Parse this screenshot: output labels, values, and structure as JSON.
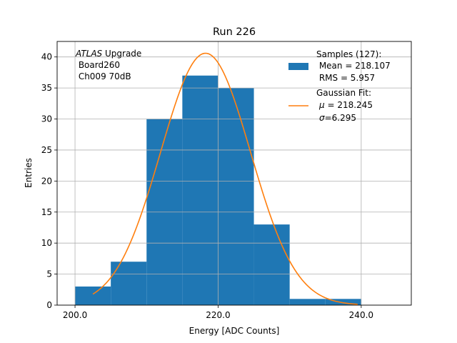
{
  "chart_data": {
    "type": "bar",
    "title": "Run 226",
    "xlabel": "Energy [ADC Counts]",
    "ylabel": "Entries",
    "xlim": [
      197.5,
      247.0
    ],
    "ylim": [
      0,
      42.5
    ],
    "grid": true,
    "x_ticks": [
      200,
      220,
      240
    ],
    "x_tick_labels": [
      "200.0",
      "220.0",
      "240.0"
    ],
    "y_ticks": [
      0,
      5,
      10,
      15,
      20,
      25,
      30,
      35,
      40
    ],
    "y_tick_labels": [
      "0",
      "5",
      "10",
      "15",
      "20",
      "25",
      "30",
      "35",
      "40"
    ],
    "histogram": {
      "bin_edges": [
        200,
        205,
        210,
        215,
        220,
        225,
        230,
        235,
        240
      ],
      "counts": [
        3,
        7,
        30,
        37,
        35,
        13,
        1,
        1
      ],
      "color": "#1f77b4"
    },
    "fit": {
      "type": "gaussian",
      "amplitude": 40.6,
      "mu": 218.245,
      "sigma": 6.295,
      "x_range": [
        202.5,
        239.5
      ],
      "color": "#ff7f0e"
    },
    "annotation": {
      "line1_italic": "ATLAS",
      "line1_rest": " Upgrade",
      "line2": " Board260",
      "line3": " Ch009 70dB"
    },
    "legend": {
      "position": "top-right",
      "hist_title": "Samples (127):",
      "hist_mean": " Mean = 218.107",
      "hist_rms": " RMS = 5.957",
      "fit_title": "Gaussian Fit:",
      "fit_mu_symbol": "μ",
      "fit_mu_value": " = 218.245",
      "fit_sigma_symbol": "σ",
      "fit_sigma_value": "=6.295"
    }
  }
}
